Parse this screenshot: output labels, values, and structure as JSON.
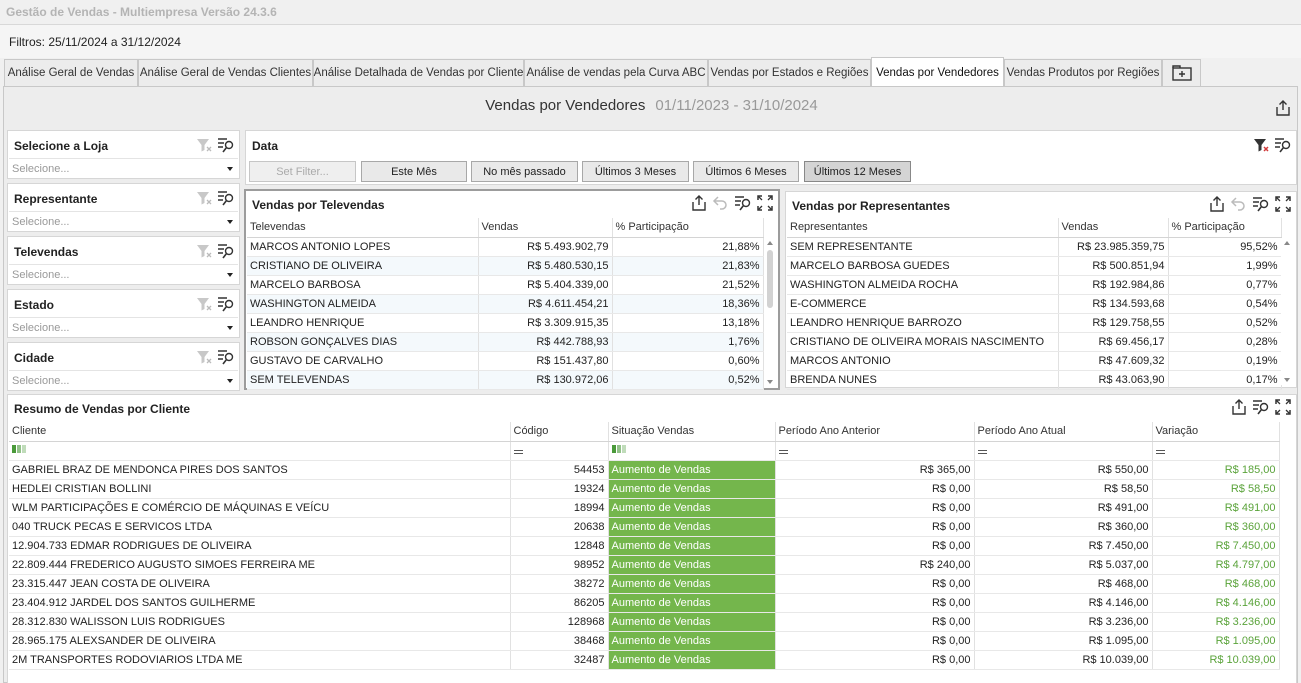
{
  "window": {
    "title": "Gestão de Vendas - Multiempresa Versão 24.3.6"
  },
  "filters_label": "Filtros: 25/11/2024 a 31/12/2024",
  "tabs": [
    {
      "label": "Análise Geral de Vendas"
    },
    {
      "label": "Análise Geral de Vendas Clientes"
    },
    {
      "label": "Análise Detalhada de Vendas por Cliente"
    },
    {
      "label": "Análise de vendas pela Curva ABC"
    },
    {
      "label": "Vendas por Estados e Regiões"
    },
    {
      "label": "Vendas por Vendedores",
      "active": true
    },
    {
      "label": "Vendas Produtos por Regiões"
    }
  ],
  "dashboard": {
    "title": "Vendas por Vendedores",
    "range": "01/11/2023 - 31/10/2024"
  },
  "filter_boxes": [
    {
      "title": "Selecione a Loja",
      "placeholder": "Selecione..."
    },
    {
      "title": "Representante",
      "placeholder": "Selecione..."
    },
    {
      "title": "Televendas",
      "placeholder": "Selecione..."
    },
    {
      "title": "Estado",
      "placeholder": "Selecione..."
    },
    {
      "title": "Cidade",
      "placeholder": "Selecione..."
    }
  ],
  "date_filter": {
    "title": "Data",
    "buttons": [
      "Set Filter...",
      "Este Mês",
      "No mês passado",
      "Últimos 3 Meses",
      "Últimos 6 Meses",
      "Últimos 12 Meses"
    ]
  },
  "televendas": {
    "title": "Vendas por Televendas",
    "columns": [
      "Televendas",
      "Vendas",
      "% Participação"
    ],
    "rows": [
      [
        "MARCOS ANTONIO LOPES",
        "R$ 5.493.902,79",
        "21,88%"
      ],
      [
        "CRISTIANO DE OLIVEIRA",
        "R$ 5.480.530,15",
        "21,83%"
      ],
      [
        "MARCELO BARBOSA",
        "R$ 5.404.339,00",
        "21,52%"
      ],
      [
        "WASHINGTON ALMEIDA",
        "R$ 4.611.454,21",
        "18,36%"
      ],
      [
        "LEANDRO HENRIQUE",
        "R$ 3.309.915,35",
        "13,18%"
      ],
      [
        "ROBSON GONÇALVES DIAS",
        "R$ 442.788,93",
        "1,76%"
      ],
      [
        "GUSTAVO DE CARVALHO",
        "R$ 151.437,80",
        "0,60%"
      ],
      [
        "SEM TELEVENDAS",
        "R$ 130.972,06",
        "0,52%"
      ]
    ]
  },
  "representantes": {
    "title": "Vendas por Representantes",
    "columns": [
      "Representantes",
      "Vendas",
      "% Participação"
    ],
    "rows": [
      [
        "SEM REPRESENTANTE",
        "R$ 23.985.359,75",
        "95,52%"
      ],
      [
        "MARCELO BARBOSA GUEDES",
        "R$ 500.851,94",
        "1,99%"
      ],
      [
        "WASHINGTON ALMEIDA ROCHA",
        "R$ 192.984,86",
        "0,77%"
      ],
      [
        "E-COMMERCE",
        "R$ 134.593,68",
        "0,54%"
      ],
      [
        "LEANDRO HENRIQUE BARROZO",
        "R$ 129.758,55",
        "0,52%"
      ],
      [
        "CRISTIANO DE OLIVEIRA MORAIS NASCIMENTO",
        "R$ 69.456,17",
        "0,28%"
      ],
      [
        "MARCOS ANTONIO",
        "R$ 47.609,32",
        "0,19%"
      ],
      [
        "BRENDA NUNES",
        "R$ 43.063,90",
        "0,17%"
      ]
    ]
  },
  "resumo": {
    "title": "Resumo de Vendas por Cliente",
    "columns": [
      "Cliente",
      "Código",
      "Situação Vendas",
      "Período Ano Anterior",
      "Período Ano Atual",
      "Variação"
    ],
    "rows": [
      [
        "GABRIEL BRAZ DE MENDONCA PIRES DOS SANTOS",
        "54453",
        "Aumento de Vendas",
        "R$ 365,00",
        "R$ 550,00",
        "R$ 185,00"
      ],
      [
        "HEDLEI CRISTIAN BOLLINI",
        "19324",
        "Aumento de Vendas",
        "R$ 0,00",
        "R$ 58,50",
        "R$ 58,50"
      ],
      [
        "WLM PARTICIPAÇÕES E COMÉRCIO DE MÁQUINAS  E VEÍCU",
        "18994",
        "Aumento de Vendas",
        "R$ 0,00",
        "R$ 491,00",
        "R$ 491,00"
      ],
      [
        "040 TRUCK PECAS E SERVICOS LTDA",
        "20638",
        "Aumento de Vendas",
        "R$ 0,00",
        "R$ 360,00",
        "R$ 360,00"
      ],
      [
        "12.904.733 EDMAR RODRIGUES DE OLIVEIRA",
        "12848",
        "Aumento de Vendas",
        "R$ 0,00",
        "R$ 7.450,00",
        "R$ 7.450,00"
      ],
      [
        "22.809.444 FREDERICO AUGUSTO SIMOES FERREIRA ME",
        "98952",
        "Aumento de Vendas",
        "R$ 240,00",
        "R$ 5.037,00",
        "R$ 4.797,00"
      ],
      [
        "23.315.447 JEAN COSTA DE OLIVEIRA",
        "38272",
        "Aumento de Vendas",
        "R$ 0,00",
        "R$ 468,00",
        "R$ 468,00"
      ],
      [
        "23.404.912 JARDEL DOS SANTOS GUILHERME",
        "86205",
        "Aumento de Vendas",
        "R$ 0,00",
        "R$ 4.146,00",
        "R$ 4.146,00"
      ],
      [
        "28.312.830 WALISSON LUIS RODRIGUES",
        "128968",
        "Aumento de Vendas",
        "R$ 0,00",
        "R$ 3.236,00",
        "R$ 3.236,00"
      ],
      [
        "28.965.175 ALEXSANDER DE OLIVEIRA",
        "38468",
        "Aumento de Vendas",
        "R$ 0,00",
        "R$ 1.095,00",
        "R$ 1.095,00"
      ],
      [
        "2M TRANSPORTES RODOVIARIOS LTDA ME",
        "32487",
        "Aumento de Vendas",
        "R$ 0,00",
        "R$ 10.039,00",
        "R$ 10.039,00"
      ]
    ]
  }
}
